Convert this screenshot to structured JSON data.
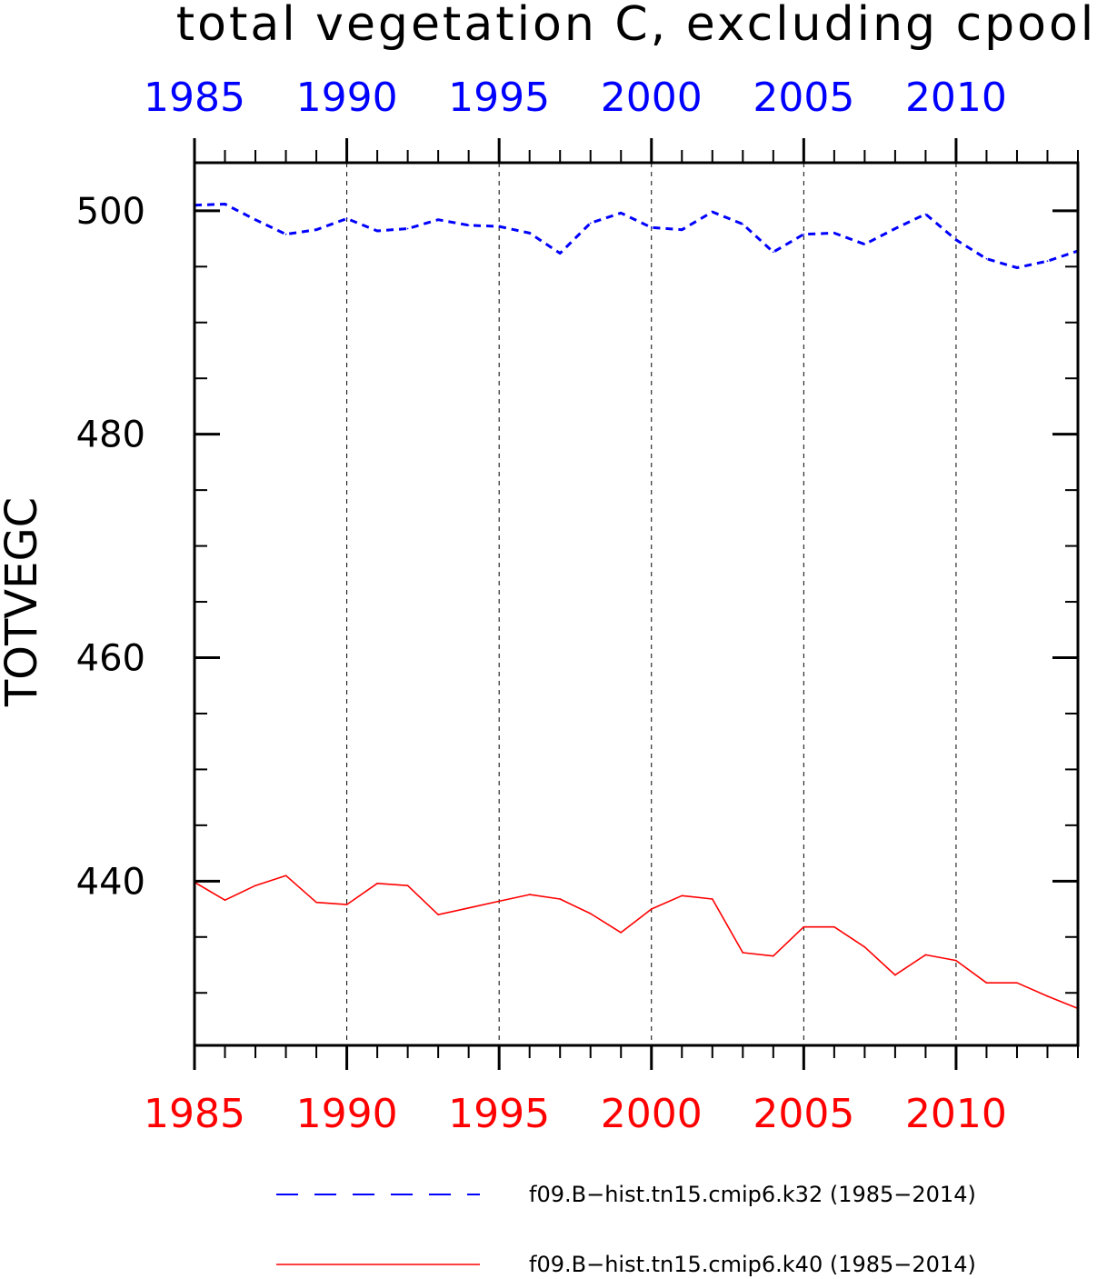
{
  "chart_data": {
    "type": "line",
    "title": "total vegetation C, excluding cpool",
    "xlabel": "",
    "ylabel": "TOTVEGC",
    "xlim": [
      1985,
      2014
    ],
    "ylim": [
      425.3,
      504.3
    ],
    "x_tick_labels": [
      "1985",
      "1990",
      "1995",
      "2000",
      "2005",
      "2010"
    ],
    "x_tick_values": [
      1985,
      1990,
      1995,
      2000,
      2005,
      2010
    ],
    "y_tick_labels": [
      "440",
      "460",
      "480",
      "500"
    ],
    "y_tick_values": [
      440,
      460,
      480,
      500
    ],
    "grid": "vertical dashed at labeled years",
    "legend_position": "bottom",
    "x": [
      1985,
      1986,
      1987,
      1988,
      1989,
      1990,
      1991,
      1992,
      1993,
      1994,
      1995,
      1996,
      1997,
      1998,
      1999,
      2000,
      2001,
      2002,
      2003,
      2004,
      2005,
      2006,
      2007,
      2008,
      2009,
      2010,
      2011,
      2012,
      2013,
      2014
    ],
    "series": [
      {
        "name": "f09.B−hist.tn15.cmip6.k32 (1985−2014)",
        "color": "#0000ff",
        "style": "dashed",
        "values": [
          500.5,
          500.6,
          499.2,
          497.9,
          498.3,
          499.3,
          498.2,
          498.4,
          499.2,
          498.7,
          498.6,
          498.0,
          496.2,
          498.9,
          499.8,
          498.5,
          498.3,
          499.9,
          498.8,
          496.3,
          497.9,
          498.0,
          497.0,
          498.4,
          499.7,
          497.4,
          495.7,
          494.9,
          495.5,
          496.4
        ]
      },
      {
        "name": "f09.B−hist.tn15.cmip6.k40 (1985−2014)",
        "color": "#ff0000",
        "style": "solid",
        "values": [
          439.9,
          438.3,
          439.6,
          440.5,
          438.1,
          437.9,
          439.8,
          439.6,
          437.0,
          437.6,
          438.2,
          438.8,
          438.4,
          437.1,
          435.4,
          437.5,
          438.7,
          438.4,
          433.6,
          433.3,
          435.9,
          435.9,
          434.1,
          431.6,
          433.4,
          432.9,
          430.9,
          430.9,
          429.7,
          428.6
        ]
      }
    ]
  }
}
